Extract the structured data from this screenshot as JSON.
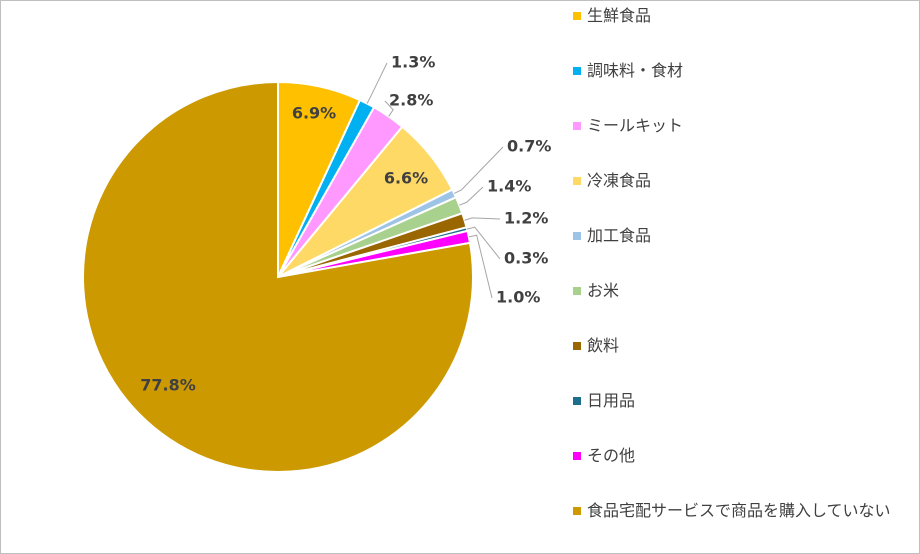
{
  "chart_data": {
    "type": "pie",
    "categories": [
      "生鮮食品",
      "調味料・食材",
      "ミールキット",
      "冷凍食品",
      "加工食品",
      "お米",
      "飲料",
      "日用品",
      "その他",
      "食品宅配サービスで商品を購入していない"
    ],
    "values": [
      6.9,
      1.3,
      2.8,
      6.6,
      0.7,
      1.4,
      1.2,
      0.3,
      1.0,
      77.8
    ],
    "value_labels": [
      "6.9%",
      "1.3%",
      "2.8%",
      "6.6%",
      "0.7%",
      "1.4%",
      "1.2%",
      "0.3%",
      "1.0%",
      "77.8%"
    ],
    "colors": [
      "#FFC000",
      "#00B0F0",
      "#FF99FF",
      "#FFD966",
      "#9DC3E6",
      "#A9D18E",
      "#996600",
      "#1F6E8C",
      "#FF00FF",
      "#CC9900"
    ],
    "legend": "right"
  }
}
